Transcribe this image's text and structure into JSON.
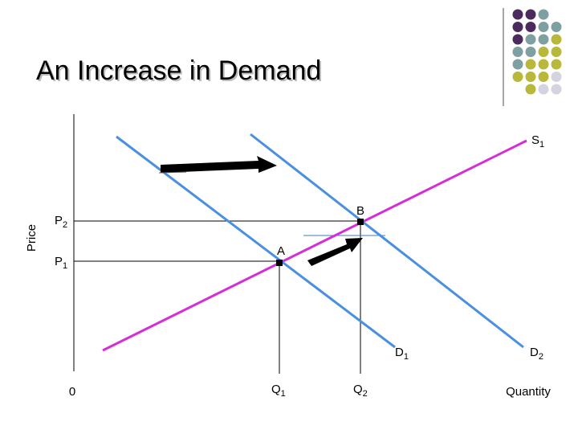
{
  "title": "An Increase in Demand",
  "axes": {
    "y_label": "Price",
    "x_label": "Quantity",
    "origin": "0"
  },
  "curves": {
    "supply": {
      "main": "S",
      "sub": "1"
    },
    "demand_old": {
      "main": "D",
      "sub": "1"
    },
    "demand_new": {
      "main": "D",
      "sub": "2"
    }
  },
  "prices": [
    {
      "main": "P",
      "sub": "2"
    },
    {
      "main": "P",
      "sub": "1"
    }
  ],
  "quantities": [
    {
      "main": "Q",
      "sub": "1"
    },
    {
      "main": "Q",
      "sub": "2"
    }
  ],
  "points": [
    "A",
    "B"
  ]
}
